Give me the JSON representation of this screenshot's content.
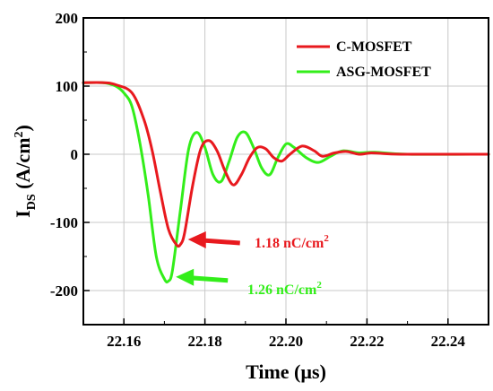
{
  "chart_data": {
    "type": "line",
    "xlabel": "Time (µs)",
    "ylabel": {
      "main": "I",
      "sub": "DS",
      "unit": " (A/cm",
      "sup": "2",
      "close": ")"
    },
    "xlim": [
      22.15,
      22.25
    ],
    "ylim": [
      -250,
      200
    ],
    "xticks": [
      {
        "value": 22.16,
        "label": "22.16"
      },
      {
        "value": 22.18,
        "label": "22.18"
      },
      {
        "value": 22.2,
        "label": "22.20"
      },
      {
        "value": 22.22,
        "label": "22.22"
      },
      {
        "value": 22.24,
        "label": "22.24"
      }
    ],
    "yticks": [
      {
        "value": 200,
        "label": "200"
      },
      {
        "value": 100,
        "label": "100"
      },
      {
        "value": 0,
        "label": "0"
      },
      {
        "value": -100,
        "label": "-100"
      },
      {
        "value": -200,
        "label": "-200"
      }
    ],
    "grid": true,
    "legend": {
      "placement": "top-right"
    },
    "series": [
      {
        "name": "C-MOSFET",
        "color": "#e8191e",
        "x": [
          22.15,
          22.155,
          22.158,
          22.162,
          22.165,
          22.167,
          22.169,
          22.171,
          22.173,
          22.174,
          22.175,
          22.177,
          22.179,
          22.181,
          22.183,
          22.185,
          22.187,
          22.189,
          22.191,
          22.193,
          22.195,
          22.197,
          22.199,
          22.201,
          22.204,
          22.207,
          22.209,
          22.212,
          22.215,
          22.218,
          22.221,
          22.224,
          22.23,
          22.25
        ],
        "y": [
          105,
          105,
          102,
          90,
          50,
          5,
          -55,
          -110,
          -133,
          -132,
          -115,
          -45,
          8,
          20,
          5,
          -25,
          -45,
          -30,
          -5,
          10,
          8,
          -5,
          -10,
          0,
          12,
          5,
          -3,
          2,
          4,
          0,
          2,
          1,
          0,
          0
        ]
      },
      {
        "name": "ASG-MOSFET",
        "color": "#33ee1a",
        "x": [
          22.15,
          22.155,
          22.158,
          22.16,
          22.162,
          22.164,
          22.166,
          22.168,
          22.17,
          22.171,
          22.172,
          22.174,
          22.176,
          22.178,
          22.18,
          22.182,
          22.184,
          22.186,
          22.188,
          22.19,
          22.192,
          22.194,
          22.196,
          22.198,
          22.2,
          22.202,
          22.205,
          22.208,
          22.211,
          22.214,
          22.218,
          22.222,
          22.23,
          22.25
        ],
        "y": [
          105,
          105,
          100,
          90,
          70,
          15,
          -60,
          -150,
          -183,
          -186,
          -170,
          -80,
          8,
          32,
          10,
          -30,
          -40,
          -10,
          25,
          32,
          10,
          -20,
          -30,
          -5,
          15,
          10,
          -5,
          -12,
          -3,
          5,
          2,
          3,
          0,
          0
        ]
      }
    ],
    "annotations": [
      {
        "text": "1.18 nC/cm",
        "sup": "2",
        "color": "#e8191e",
        "target_x": 22.1745,
        "target_y": -125
      },
      {
        "text": "1.26 nC/cm",
        "sup": "2",
        "color": "#33ee1a",
        "target_x": 22.1715,
        "target_y": -180
      }
    ]
  }
}
